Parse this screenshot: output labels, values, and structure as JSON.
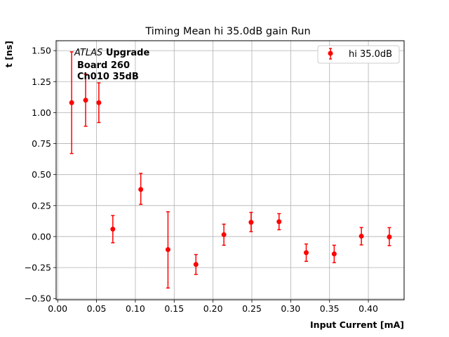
{
  "chart_data": {
    "type": "scatter",
    "title": "Timing Mean hi 35.0dB gain Run",
    "xlabel": "Input Current [mA]",
    "ylabel": "t [ns]",
    "xlim": [
      -0.002,
      0.446
    ],
    "ylim": [
      -0.51,
      1.58
    ],
    "xticks": [
      "0.00",
      "0.05",
      "0.10",
      "0.15",
      "0.20",
      "0.25",
      "0.30",
      "0.35",
      "0.40"
    ],
    "xtick_values": [
      0.0,
      0.05,
      0.1,
      0.15,
      0.2,
      0.25,
      0.3,
      0.35,
      0.4
    ],
    "yticks": [
      "1.50",
      "1.25",
      "1.00",
      "0.75",
      "0.50",
      "0.25",
      "0.00",
      "−0.25",
      "−0.50"
    ],
    "ytick_values": [
      1.5,
      1.25,
      1.0,
      0.75,
      0.5,
      0.25,
      0.0,
      -0.25,
      -0.5
    ],
    "grid": true,
    "legend_position": "top-right",
    "color": "#ff0000",
    "annotation": {
      "italic": "ATLAS",
      "bold": "Upgrade",
      "line2": "Board 260",
      "line3": "Ch010 35dB"
    },
    "series": [
      {
        "name": "hi 35.0dB",
        "x": [
          0.018,
          0.036,
          0.053,
          0.071,
          0.107,
          0.142,
          0.178,
          0.214,
          0.249,
          0.285,
          0.32,
          0.356,
          0.391,
          0.427
        ],
        "y": [
          1.08,
          1.1,
          1.08,
          0.06,
          0.38,
          -0.105,
          -0.225,
          0.015,
          0.115,
          0.12,
          -0.13,
          -0.14,
          0.003,
          -0.003
        ],
        "yerr_low": [
          0.41,
          0.21,
          0.16,
          0.11,
          0.12,
          0.31,
          0.08,
          0.085,
          0.075,
          0.065,
          0.07,
          0.07,
          0.07,
          0.07
        ],
        "yerr_high": [
          0.41,
          0.21,
          0.16,
          0.11,
          0.13,
          0.305,
          0.08,
          0.085,
          0.08,
          0.065,
          0.07,
          0.07,
          0.07,
          0.075
        ]
      }
    ]
  }
}
